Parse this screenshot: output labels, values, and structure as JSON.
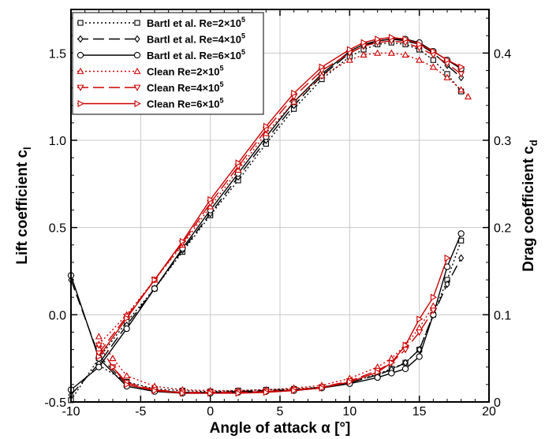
{
  "chart_data": {
    "type": "line",
    "xlabel": "Angle of attack α [°]",
    "ylabel_left": "Lift coefficient c",
    "ylabel_left_sub": "l",
    "ylabel_right": "Drag coefficient c",
    "ylabel_right_sub": "d",
    "xlim": [
      -10,
      20
    ],
    "ylim_left": [
      -0.5,
      1.75
    ],
    "ylim_right": [
      0,
      0.45
    ],
    "x_ticks": [
      -10,
      -5,
      0,
      5,
      10,
      15,
      20
    ],
    "x_tick_labels": [
      "-10",
      "-5",
      "0",
      "5",
      "10",
      "15",
      "20"
    ],
    "y_left_ticks": [
      -0.5,
      0,
      0.5,
      1,
      1.5
    ],
    "y_left_tick_labels": [
      "-0.5",
      "0.0",
      "0.5",
      "1.0",
      "1.5"
    ],
    "y_right_ticks": [
      0,
      0.1,
      0.2,
      0.3,
      0.4
    ],
    "y_right_tick_labels": [
      "0",
      "0.1",
      "0.2",
      "0.3",
      "0.4"
    ],
    "grid": true,
    "legend_position": "top-left",
    "colors": {
      "bartl": "#000000",
      "clean": "#cc0000"
    },
    "series": [
      {
        "name": "Bartl et al. Re=2×10",
        "name_sup": "5",
        "color": "#000000",
        "dash": "2,3",
        "marker": "square",
        "lift": {
          "x": [
            -10,
            -8,
            -6,
            -4,
            -2,
            0,
            2,
            4,
            6,
            8,
            10,
            11,
            12,
            13,
            14,
            15,
            16,
            17,
            18
          ],
          "y": [
            -0.49,
            -0.25,
            -0.04,
            0.15,
            0.36,
            0.57,
            0.77,
            0.98,
            1.18,
            1.35,
            1.48,
            1.52,
            1.55,
            1.56,
            1.55,
            1.52,
            1.46,
            1.38,
            1.28
          ]
        },
        "drag": {
          "x": [
            -8,
            -6,
            -4,
            -2,
            0,
            2,
            4,
            6,
            8,
            10,
            12,
            13,
            14,
            15,
            16,
            17,
            18
          ],
          "y": [
            0.042,
            0.023,
            0.015,
            0.013,
            0.012,
            0.013,
            0.014,
            0.015,
            0.017,
            0.022,
            0.032,
            0.038,
            0.045,
            0.06,
            0.1,
            0.14,
            0.185
          ]
        }
      },
      {
        "name": "Bartl et al. Re=4×10",
        "name_sup": "5",
        "color": "#000000",
        "dash": "14,6",
        "marker": "diamond",
        "lift": {
          "x": [
            -10,
            -8,
            -6,
            -4,
            -2,
            0,
            2,
            4,
            6,
            8,
            10,
            11,
            12,
            13,
            14,
            15,
            16,
            17,
            18
          ],
          "y": [
            -0.46,
            -0.28,
            -0.06,
            0.15,
            0.37,
            0.58,
            0.79,
            1.0,
            1.2,
            1.37,
            1.5,
            1.54,
            1.57,
            1.58,
            1.57,
            1.55,
            1.5,
            1.43,
            1.36
          ]
        },
        "drag": {
          "x": [
            -10,
            -8,
            -6,
            -4,
            -2,
            0,
            2,
            4,
            6,
            8,
            10,
            12,
            13,
            14,
            15,
            16,
            17,
            18
          ],
          "y": [
            0.14,
            0.053,
            0.02,
            0.013,
            0.011,
            0.011,
            0.012,
            0.013,
            0.014,
            0.017,
            0.022,
            0.031,
            0.037,
            0.045,
            0.06,
            0.1,
            0.135,
            0.165
          ]
        }
      },
      {
        "name": "Bartl et al. Re=6×10",
        "name_sup": "5",
        "color": "#000000",
        "dash": "",
        "marker": "circle",
        "lift": {
          "x": [
            -10,
            -8,
            -6,
            -4,
            -2,
            0,
            2,
            4,
            6,
            8,
            10,
            11,
            12,
            13,
            14,
            15,
            16,
            17,
            18
          ],
          "y": [
            -0.43,
            -0.3,
            -0.08,
            0.15,
            0.38,
            0.6,
            0.81,
            1.02,
            1.22,
            1.38,
            1.51,
            1.55,
            1.57,
            1.58,
            1.58,
            1.56,
            1.51,
            1.46,
            1.41
          ]
        },
        "drag": {
          "x": [
            -10,
            -8,
            -6,
            -4,
            -2,
            0,
            2,
            4,
            6,
            8,
            10,
            12,
            13,
            14,
            15,
            16,
            17,
            18
          ],
          "y": [
            0.145,
            0.05,
            0.018,
            0.012,
            0.01,
            0.01,
            0.011,
            0.012,
            0.013,
            0.016,
            0.021,
            0.028,
            0.033,
            0.038,
            0.052,
            0.1,
            0.155,
            0.193
          ]
        }
      },
      {
        "name": "Clean Re=2×10",
        "name_sup": "5",
        "color": "#cc0000",
        "dash": "2,3",
        "marker": "triangle-up",
        "lift": {
          "x": [
            -8,
            -6,
            -4,
            -2,
            0,
            2,
            4,
            6,
            8,
            10,
            11,
            12,
            13,
            14,
            15,
            16,
            17,
            18,
            18.5
          ],
          "y": [
            -0.17,
            0.0,
            0.2,
            0.4,
            0.62,
            0.83,
            1.04,
            1.22,
            1.37,
            1.46,
            1.49,
            1.5,
            1.5,
            1.49,
            1.46,
            1.42,
            1.36,
            1.29,
            1.25
          ]
        },
        "drag": {
          "x": [
            -8,
            -7,
            -6,
            -4,
            -2,
            0,
            2,
            4,
            6,
            8,
            10,
            12,
            13,
            14,
            15,
            16
          ],
          "y": [
            0.075,
            0.05,
            0.03,
            0.018,
            0.014,
            0.013,
            0.013,
            0.014,
            0.016,
            0.019,
            0.027,
            0.04,
            0.05,
            0.065,
            0.085,
            0.11
          ]
        }
      },
      {
        "name": "Clean Re=4×10",
        "name_sup": "5",
        "color": "#cc0000",
        "dash": "14,6",
        "marker": "triangle-down",
        "lift": {
          "x": [
            -8,
            -6,
            -4,
            -2,
            0,
            2,
            4,
            6,
            8,
            10,
            11,
            12,
            13,
            14,
            15,
            16,
            17,
            18
          ],
          "y": [
            -0.22,
            -0.01,
            0.2,
            0.41,
            0.64,
            0.85,
            1.06,
            1.25,
            1.4,
            1.5,
            1.54,
            1.56,
            1.57,
            1.56,
            1.53,
            1.49,
            1.44,
            1.38
          ]
        },
        "drag": {
          "x": [
            -8,
            -7,
            -6,
            -4,
            -2,
            0,
            2,
            4,
            6,
            8,
            10,
            12,
            13,
            14,
            15,
            16
          ],
          "y": [
            0.065,
            0.04,
            0.022,
            0.014,
            0.011,
            0.011,
            0.011,
            0.012,
            0.014,
            0.017,
            0.024,
            0.036,
            0.045,
            0.06,
            0.08,
            0.105
          ]
        }
      },
      {
        "name": "Clean Re=6×10",
        "name_sup": "5",
        "color": "#cc0000",
        "dash": "",
        "marker": "triangle-right",
        "lift": {
          "x": [
            -8,
            -6,
            -4,
            -2,
            0,
            2,
            4,
            6,
            8,
            10,
            11,
            12,
            13,
            14,
            15,
            16,
            17,
            18
          ],
          "y": [
            -0.24,
            -0.02,
            0.2,
            0.42,
            0.66,
            0.87,
            1.08,
            1.27,
            1.42,
            1.52,
            1.56,
            1.58,
            1.59,
            1.58,
            1.55,
            1.51,
            1.46,
            1.42
          ]
        },
        "drag": {
          "x": [
            -7,
            -6,
            -4,
            -2,
            0,
            2,
            4,
            6,
            8,
            10,
            12,
            13,
            14,
            15,
            16,
            17
          ],
          "y": [
            0.04,
            0.02,
            0.013,
            0.01,
            0.01,
            0.01,
            0.011,
            0.013,
            0.016,
            0.023,
            0.034,
            0.045,
            0.065,
            0.095,
            0.12,
            0.165
          ]
        }
      }
    ]
  }
}
